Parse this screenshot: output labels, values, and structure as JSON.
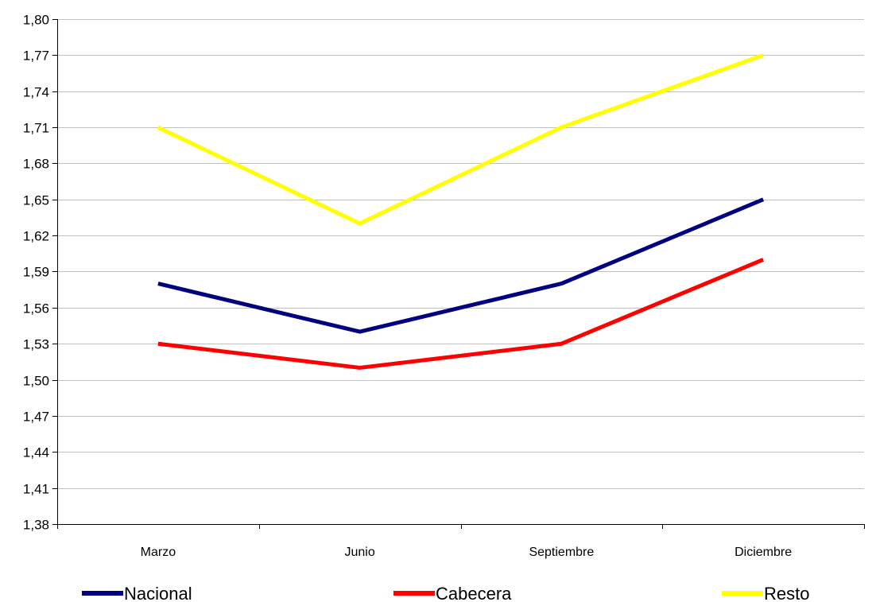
{
  "chart_data": {
    "type": "line",
    "categories": [
      "Marzo",
      "Junio",
      "Septiembre",
      "Diciembre"
    ],
    "series": [
      {
        "name": "Nacional",
        "values": [
          1.58,
          1.54,
          1.58,
          1.65
        ],
        "color": "#000080"
      },
      {
        "name": "Cabecera",
        "values": [
          1.53,
          1.51,
          1.53,
          1.6
        ],
        "color": "#ff0000"
      },
      {
        "name": "Resto",
        "values": [
          1.71,
          1.63,
          1.71,
          1.77
        ],
        "color": "#ffff00"
      }
    ],
    "ylim": [
      1.38,
      1.8
    ],
    "y_ticks": [
      "1,38",
      "1,41",
      "1,44",
      "1,47",
      "1,50",
      "1,53",
      "1,56",
      "1,59",
      "1,62",
      "1,65",
      "1,68",
      "1,71",
      "1,74",
      "1,77",
      "1,80"
    ],
    "grid": "horizontal",
    "legend_position": "bottom",
    "title": "",
    "xlabel": "",
    "ylabel": ""
  }
}
